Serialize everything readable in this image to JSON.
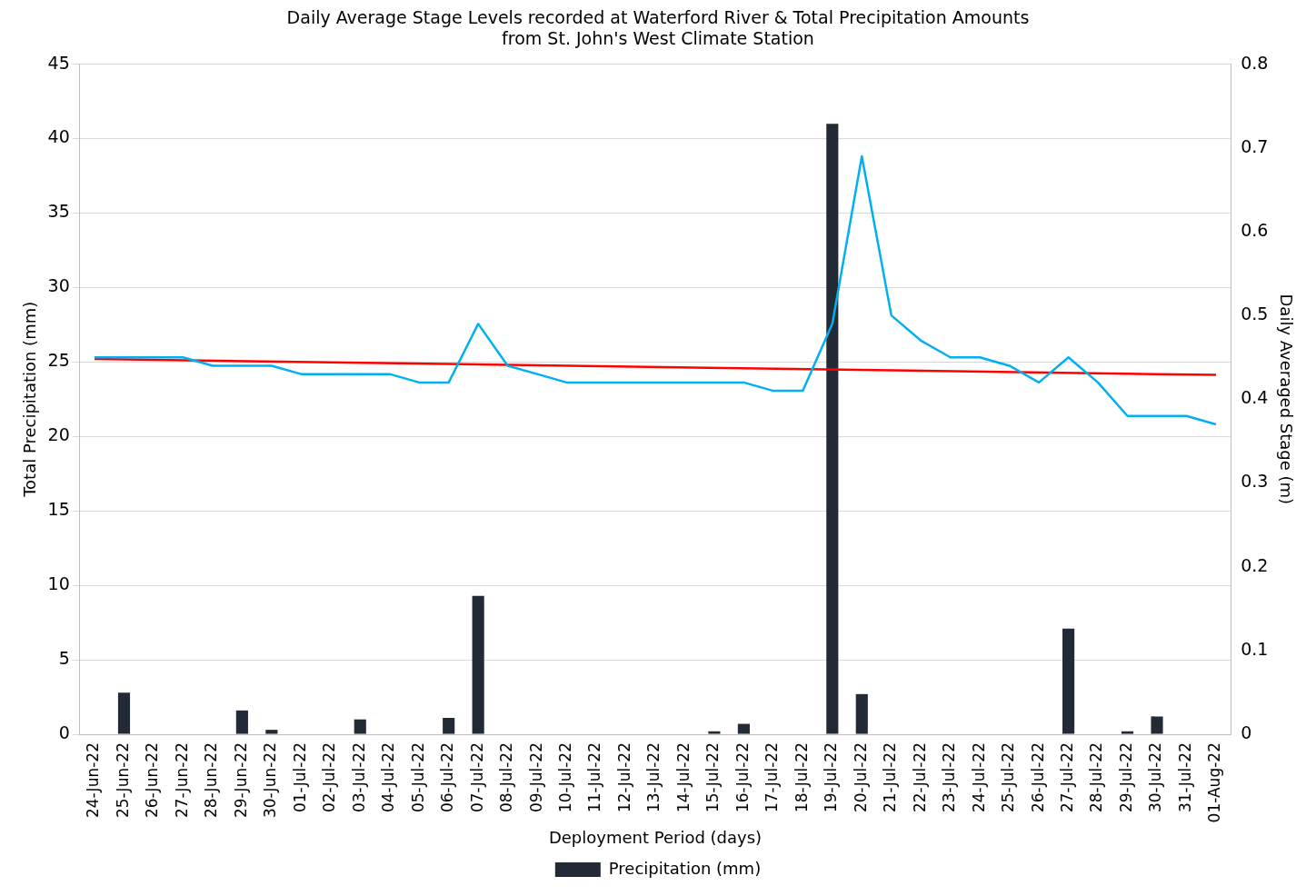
{
  "chart_data": {
    "type": "bar",
    "title": "Daily Average Stage Levels recorded at Waterford River & Total Precipitation Amounts\nfrom St. John's West Climate Station",
    "xlabel": "Deployment Period (days)",
    "ylabel": "Total Precipitation (mm)",
    "y2label": "Daily Averaged Stage (m)",
    "categories": [
      "24-Jun-22",
      "25-Jun-22",
      "26-Jun-22",
      "27-Jun-22",
      "28-Jun-22",
      "29-Jun-22",
      "30-Jun-22",
      "01-Jul-22",
      "02-Jul-22",
      "03-Jul-22",
      "04-Jul-22",
      "05-Jul-22",
      "06-Jul-22",
      "07-Jul-22",
      "08-Jul-22",
      "09-Jul-22",
      "10-Jul-22",
      "11-Jul-22",
      "12-Jul-22",
      "13-Jul-22",
      "14-Jul-22",
      "15-Jul-22",
      "16-Jul-22",
      "17-Jul-22",
      "18-Jul-22",
      "19-Jul-22",
      "20-Jul-22",
      "21-Jul-22",
      "22-Jul-22",
      "23-Jul-22",
      "24-Jul-22",
      "25-Jul-22",
      "26-Jul-22",
      "27-Jul-22",
      "28-Jul-22",
      "29-Jul-22",
      "30-Jul-22",
      "31-Jul-22",
      "01-Aug-22"
    ],
    "series": [
      {
        "name": "Precipitation (mm)",
        "color": "#222a35",
        "values": [
          0,
          2.8,
          0,
          0,
          0,
          1.6,
          0.3,
          0,
          0,
          1.0,
          0,
          0,
          1.1,
          9.3,
          0,
          0,
          0,
          0,
          0,
          0,
          0,
          0.2,
          0.7,
          0,
          0,
          41.0,
          2.7,
          0,
          0,
          0,
          0,
          0,
          0,
          7.1,
          0,
          0.2,
          1.2,
          0,
          0
        ]
      },
      {
        "type": "line",
        "axis": "y2",
        "color": "#00b0f0",
        "values": [
          0.45,
          0.45,
          0.45,
          0.45,
          0.44,
          0.44,
          0.44,
          0.43,
          0.43,
          0.43,
          0.43,
          0.42,
          0.42,
          0.49,
          0.44,
          0.43,
          0.42,
          0.42,
          0.42,
          0.42,
          0.42,
          0.42,
          0.42,
          0.41,
          0.41,
          0.49,
          0.69,
          0.5,
          0.47,
          0.45,
          0.45,
          0.44,
          0.42,
          0.45,
          0.42,
          0.38,
          0.38,
          0.38,
          0.37
        ]
      },
      {
        "type": "line",
        "axis": "y2",
        "color": "#ff0000",
        "x": [
          "24-Jun-22",
          "01-Aug-22"
        ],
        "values": [
          0.448,
          0.429
        ]
      }
    ],
    "ylim": [
      0,
      45
    ],
    "yticks": [
      0,
      5,
      10,
      15,
      20,
      25,
      30,
      35,
      40,
      45
    ],
    "y2lim": [
      0,
      0.8
    ],
    "y2ticks": [
      0,
      0.1,
      0.2,
      0.3,
      0.4,
      0.5,
      0.6,
      0.7,
      0.8
    ],
    "grid": "y",
    "legend": "bottom",
    "marker": "none",
    "line_style": "solid"
  }
}
